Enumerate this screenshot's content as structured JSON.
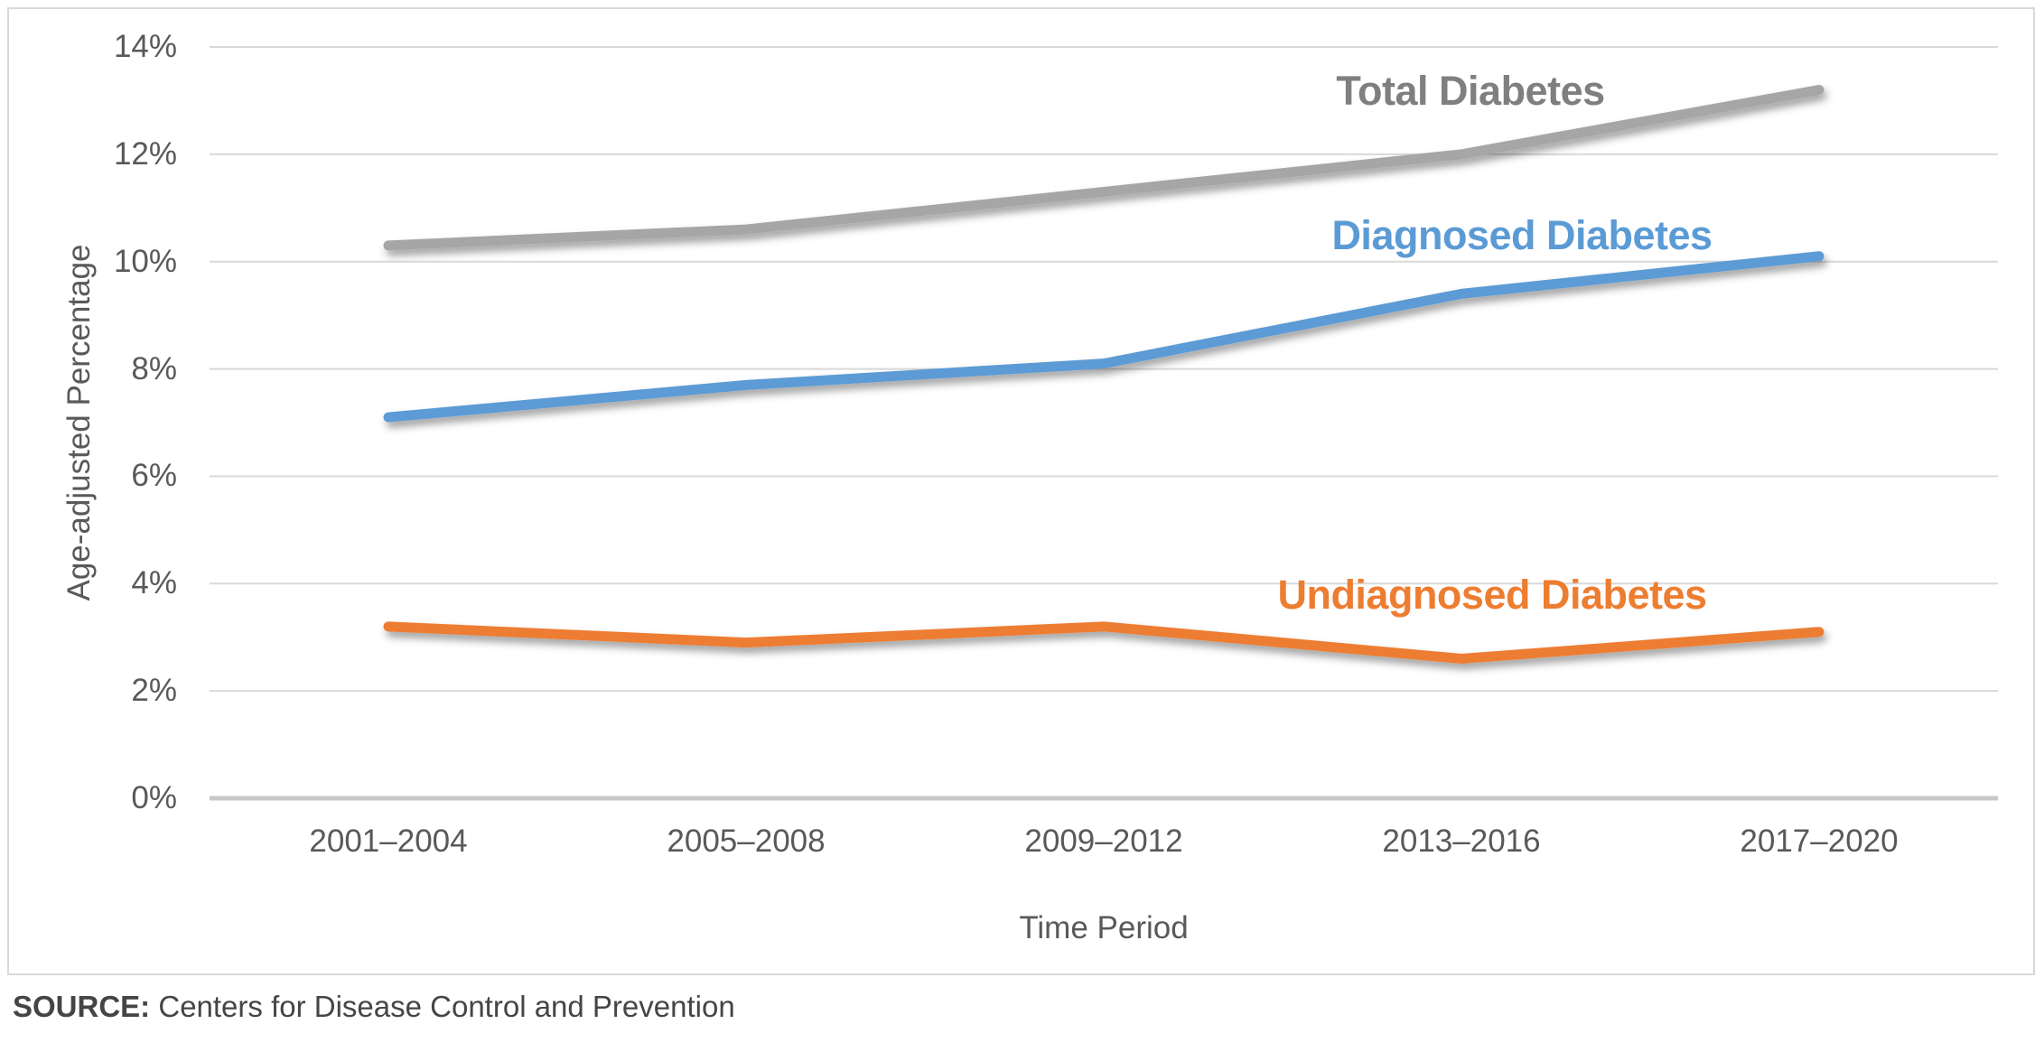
{
  "figure": {
    "source_label": "SOURCE:",
    "source_text": " Centers for Disease Control and Prevention"
  },
  "chart_data": {
    "type": "line",
    "title": "",
    "xlabel": "Time Period",
    "ylabel": "Age-adjusted Percentage",
    "categories": [
      "2001–2004",
      "2005–2008",
      "2009–2012",
      "2013–2016",
      "2017–2020"
    ],
    "series": [
      {
        "name": "Total Diabetes",
        "values": [
          10.3,
          10.6,
          11.3,
          12.0,
          13.2
        ],
        "color": "#A6A6A6",
        "label_color": "#7F7F7F"
      },
      {
        "name": "Diagnosed Diabetes",
        "values": [
          7.1,
          7.7,
          8.1,
          9.4,
          10.1
        ],
        "color": "#5B9BD5",
        "label_color": "#5B9BD5"
      },
      {
        "name": "Undiagnosed Diabetes",
        "values": [
          3.2,
          2.9,
          3.2,
          2.6,
          3.1
        ],
        "color": "#ED7D31",
        "label_color": "#ED7D31"
      }
    ],
    "ylim": [
      0,
      14
    ],
    "y_tick_step": 2,
    "y_tick_suffix": "%",
    "grid": true,
    "legend": "inline-labels",
    "colors": {
      "gridline": "#D9D9D9",
      "axis_line": "#C8C8C8",
      "tick_text": "#595959",
      "border": "#D9D9D9"
    }
  }
}
